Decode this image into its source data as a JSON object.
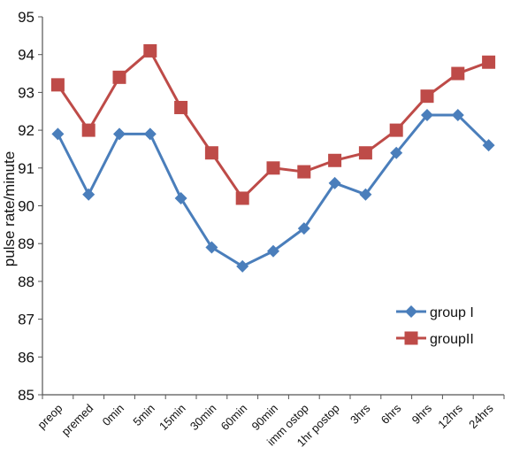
{
  "chart_data": {
    "type": "line",
    "ylabel": "pulse rate/minute",
    "xlabel": "",
    "ylim": [
      85,
      95
    ],
    "yticks": [
      "85",
      "86",
      "87",
      "88",
      "89",
      "90",
      "91",
      "92",
      "93",
      "94",
      "95"
    ],
    "grid": false,
    "legend_position": "right",
    "categories": [
      "preop",
      "premed",
      "0min",
      "5min",
      "15min",
      "30min",
      "60min",
      "90min",
      "imm ostop",
      "1hr postop",
      "3hrs",
      "6hrs",
      "9hrs",
      "12hrs",
      "24hrs"
    ],
    "series": [
      {
        "name": "group I",
        "color": "#4a7ebb",
        "marker": "diamond",
        "values": [
          91.9,
          90.3,
          91.9,
          91.9,
          90.2,
          88.9,
          88.4,
          88.8,
          89.4,
          90.6,
          90.3,
          91.4,
          92.4,
          92.4,
          91.6
        ]
      },
      {
        "name": "groupII",
        "color": "#be4b48",
        "marker": "square",
        "values": [
          93.2,
          92.0,
          93.4,
          94.1,
          92.6,
          91.4,
          90.2,
          91.0,
          90.9,
          91.2,
          91.4,
          92.0,
          92.9,
          93.5,
          93.8
        ]
      }
    ]
  }
}
